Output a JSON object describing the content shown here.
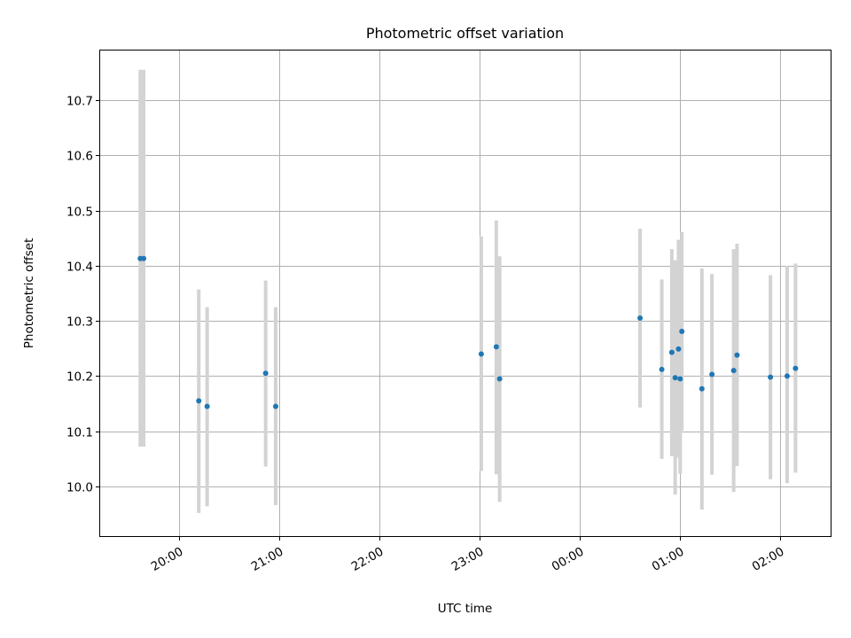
{
  "chart_data": {
    "type": "scatter",
    "title": "Photometric offset variation",
    "xlabel": "UTC time",
    "ylabel": "Photometric offset",
    "grid": true,
    "legend": "none",
    "colors": {
      "marker": "#1f77b4",
      "errorbar": "#d3d3d3",
      "grid": "#b0b0b0"
    },
    "x_ticks": [
      {
        "value": "2000-01-01T20:00",
        "label": "20:00"
      },
      {
        "value": "2000-01-01T21:00",
        "label": "21:00"
      },
      {
        "value": "2000-01-01T22:00",
        "label": "22:00"
      },
      {
        "value": "2000-01-01T23:00",
        "label": "23:00"
      },
      {
        "value": "2000-01-02T00:00",
        "label": "00:00"
      },
      {
        "value": "2000-01-02T01:00",
        "label": "01:00"
      },
      {
        "value": "2000-01-02T02:00",
        "label": "02:00"
      }
    ],
    "y_ticks": [
      10.0,
      10.1,
      10.2,
      10.3,
      10.4,
      10.5,
      10.6,
      10.7
    ],
    "xlim": [
      "2000-01-01T19:13",
      "2000-01-02T02:30"
    ],
    "ylim": [
      9.91,
      10.79
    ],
    "points": [
      {
        "x": "2000-01-01T19:37",
        "y": 10.413,
        "lo": 10.072,
        "hi": 10.755
      },
      {
        "x": "2000-01-01T19:39",
        "y": 10.413,
        "lo": 10.072,
        "hi": 10.755
      },
      {
        "x": "2000-01-01T20:12",
        "y": 10.155,
        "lo": 9.952,
        "hi": 10.357
      },
      {
        "x": "2000-01-01T20:17",
        "y": 10.145,
        "lo": 9.964,
        "hi": 10.325
      },
      {
        "x": "2000-01-01T20:52",
        "y": 10.205,
        "lo": 10.036,
        "hi": 10.373
      },
      {
        "x": "2000-01-01T20:58",
        "y": 10.145,
        "lo": 9.966,
        "hi": 10.325
      },
      {
        "x": "2000-01-01T23:01",
        "y": 10.24,
        "lo": 10.028,
        "hi": 10.453
      },
      {
        "x": "2000-01-01T23:10",
        "y": 10.253,
        "lo": 10.022,
        "hi": 10.482
      },
      {
        "x": "2000-01-01T23:12",
        "y": 10.195,
        "lo": 9.972,
        "hi": 10.417
      },
      {
        "x": "2000-01-02T00:36",
        "y": 10.305,
        "lo": 10.143,
        "hi": 10.467
      },
      {
        "x": "2000-01-02T00:49",
        "y": 10.212,
        "lo": 10.05,
        "hi": 10.375
      },
      {
        "x": "2000-01-02T00:55",
        "y": 10.243,
        "lo": 10.055,
        "hi": 10.43
      },
      {
        "x": "2000-01-02T00:57",
        "y": 10.197,
        "lo": 9.985,
        "hi": 10.41
      },
      {
        "x": "2000-01-02T00:59",
        "y": 10.249,
        "lo": 10.052,
        "hi": 10.447
      },
      {
        "x": "2000-01-02T01:00",
        "y": 10.195,
        "lo": 10.023,
        "hi": 10.37
      },
      {
        "x": "2000-01-02T01:01",
        "y": 10.281,
        "lo": 10.101,
        "hi": 10.461
      },
      {
        "x": "2000-01-02T01:13",
        "y": 10.177,
        "lo": 9.958,
        "hi": 10.395
      },
      {
        "x": "2000-01-02T01:19",
        "y": 10.203,
        "lo": 10.021,
        "hi": 10.385
      },
      {
        "x": "2000-01-02T01:32",
        "y": 10.21,
        "lo": 9.99,
        "hi": 10.43
      },
      {
        "x": "2000-01-02T01:34",
        "y": 10.238,
        "lo": 10.037,
        "hi": 10.44
      },
      {
        "x": "2000-01-02T01:54",
        "y": 10.198,
        "lo": 10.013,
        "hi": 10.383
      },
      {
        "x": "2000-01-02T02:04",
        "y": 10.2,
        "lo": 10.006,
        "hi": 10.4
      },
      {
        "x": "2000-01-02T02:09",
        "y": 10.214,
        "lo": 10.025,
        "hi": 10.404
      }
    ]
  }
}
